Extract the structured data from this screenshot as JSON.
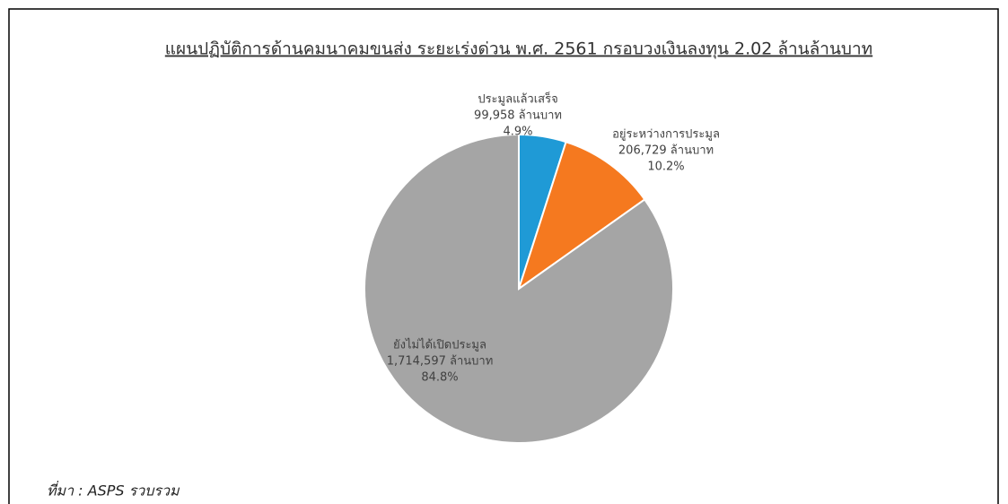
{
  "chart_data": {
    "type": "pie",
    "title": "แผนปฏิบัติการด้านคมนาคมขนส่ง ระยะเร่งด่วน พ.ศ. 2561 กรอบวงเงินลงทุน 2.02 ล้านล้านบาท",
    "categories": [
      "ประมูลแล้วเสร็จ",
      "อยู่ระหว่างการประมูล",
      "ยังไม่ได้เปิดประมูล"
    ],
    "values": [
      99958,
      206729,
      1714597
    ],
    "value_labels": [
      "99,958 ล้านบาท",
      "206,729 ล้านบาท",
      "1,714,597 ล้านบาท"
    ],
    "percent_labels": [
      "4.9%",
      "10.2%",
      "84.8%"
    ],
    "colors": [
      "#1f9ad6",
      "#f5791f",
      "#a5a5a5"
    ],
    "source": "ที่มา : ASPS รวบรวม"
  }
}
